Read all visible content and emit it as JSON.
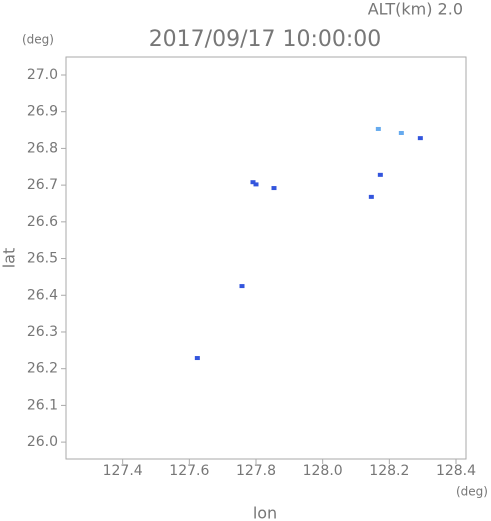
{
  "chart_data": {
    "type": "scatter",
    "title": "2017/09/17 10:00:00",
    "altitude_label": "ALT(km) 2.0",
    "x_label": "lon",
    "y_label": "lat",
    "x_unit": "(deg)",
    "y_unit": "(deg)",
    "xlim": [
      127.23,
      128.43
    ],
    "ylim": [
      25.954,
      27.049
    ],
    "xticks": [
      127.4,
      127.6,
      127.8,
      {
        "value": 128.0,
        "label": "128.0"
      },
      128.2,
      128.4
    ],
    "yticks": [
      {
        "value": 26.0,
        "label": "26.0"
      },
      26.1,
      26.2,
      26.3,
      26.4,
      26.5,
      26.6,
      26.7,
      26.8,
      26.9,
      {
        "value": 27.0,
        "label": "27.0"
      }
    ],
    "series": [
      {
        "color": "#3355dd",
        "x": [
          127.624,
          127.758,
          127.791,
          127.8,
          127.854,
          128.146,
          128.173,
          128.293
        ],
        "values": [
          26.229,
          26.425,
          26.708,
          26.702,
          26.692,
          26.668,
          26.728,
          26.828
        ]
      },
      {
        "color": "#66aaee",
        "x": [
          128.167,
          128.236
        ],
        "values": [
          26.853,
          26.842
        ]
      }
    ]
  }
}
